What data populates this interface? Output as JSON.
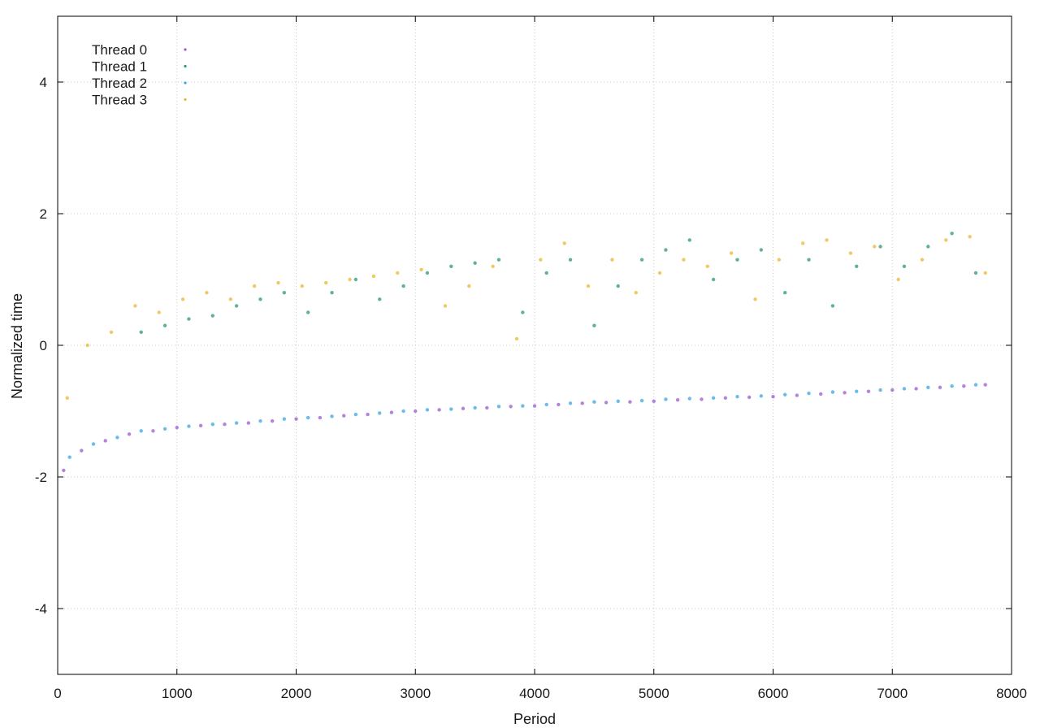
{
  "chart_data": {
    "type": "scatter",
    "title": "",
    "xlabel": "Period",
    "ylabel": "Normalized time",
    "xlim": [
      0,
      8000
    ],
    "ylim": [
      -5,
      5
    ],
    "x_ticks": [
      0,
      1000,
      2000,
      3000,
      4000,
      5000,
      6000,
      7000,
      8000
    ],
    "y_ticks": [
      -4,
      -2,
      0,
      2,
      4
    ],
    "x_tick_labels": [
      "0",
      "1000",
      "2000",
      "3000",
      "4000",
      "5000",
      "6000",
      "7000",
      "8000"
    ],
    "y_tick_labels": [
      "-4",
      "-2",
      "0",
      "2",
      "4"
    ],
    "grid": true,
    "legend_position": "top-left",
    "series": [
      {
        "name": "Thread 0",
        "color": "#9b59d0",
        "x": [
          50,
          200,
          400,
          600,
          800,
          1000,
          1200,
          1400,
          1600,
          1800,
          2000,
          2200,
          2400,
          2600,
          2800,
          3000,
          3200,
          3400,
          3600,
          3800,
          4000,
          4200,
          4400,
          4600,
          4800,
          5000,
          5200,
          5400,
          5600,
          5800,
          6000,
          6200,
          6400,
          6600,
          6800,
          7000,
          7200,
          7400,
          7600,
          7780
        ],
        "y": [
          -1.9,
          -1.6,
          -1.45,
          -1.35,
          -1.3,
          -1.25,
          -1.22,
          -1.2,
          -1.18,
          -1.15,
          -1.12,
          -1.1,
          -1.07,
          -1.05,
          -1.02,
          -1.0,
          -0.98,
          -0.96,
          -0.95,
          -0.93,
          -0.92,
          -0.9,
          -0.88,
          -0.87,
          -0.86,
          -0.85,
          -0.83,
          -0.82,
          -0.8,
          -0.79,
          -0.78,
          -0.76,
          -0.74,
          -0.72,
          -0.7,
          -0.68,
          -0.66,
          -0.64,
          -0.62,
          -0.6
        ]
      },
      {
        "name": "Thread 1",
        "color": "#2a9a6e",
        "x": [
          700,
          900,
          1100,
          1300,
          1500,
          1700,
          1900,
          2100,
          2300,
          2500,
          2700,
          2900,
          3100,
          3300,
          3500,
          3700,
          3900,
          4100,
          4300,
          4500,
          4700,
          4900,
          5100,
          5300,
          5500,
          5700,
          5900,
          6100,
          6300,
          6500,
          6700,
          6900,
          7100,
          7300,
          7500,
          7700
        ],
        "y": [
          0.2,
          0.3,
          0.4,
          0.45,
          0.6,
          0.7,
          0.8,
          0.5,
          0.8,
          1.0,
          0.7,
          0.9,
          1.1,
          1.2,
          1.25,
          1.3,
          0.5,
          1.1,
          1.3,
          0.3,
          0.9,
          1.3,
          1.45,
          1.6,
          1.0,
          1.3,
          1.45,
          0.8,
          1.3,
          0.6,
          1.2,
          1.5,
          1.2,
          1.5,
          1.7,
          1.1
        ]
      },
      {
        "name": "Thread 2",
        "color": "#3aa5e0",
        "x": [
          100,
          300,
          500,
          700,
          900,
          1100,
          1300,
          1500,
          1700,
          1900,
          2100,
          2300,
          2500,
          2700,
          2900,
          3100,
          3300,
          3500,
          3700,
          3900,
          4100,
          4300,
          4500,
          4700,
          4900,
          5100,
          5300,
          5500,
          5700,
          5900,
          6100,
          6300,
          6500,
          6700,
          6900,
          7100,
          7300,
          7500,
          7700
        ],
        "y": [
          -1.7,
          -1.5,
          -1.4,
          -1.3,
          -1.27,
          -1.23,
          -1.2,
          -1.18,
          -1.15,
          -1.12,
          -1.1,
          -1.08,
          -1.05,
          -1.03,
          -1.0,
          -0.98,
          -0.97,
          -0.95,
          -0.93,
          -0.92,
          -0.9,
          -0.88,
          -0.86,
          -0.85,
          -0.84,
          -0.82,
          -0.81,
          -0.8,
          -0.78,
          -0.77,
          -0.75,
          -0.73,
          -0.71,
          -0.7,
          -0.68,
          -0.66,
          -0.64,
          -0.62,
          -0.6
        ]
      },
      {
        "name": "Thread 3",
        "color": "#e8b830",
        "x": [
          80,
          250,
          450,
          650,
          850,
          1050,
          1250,
          1450,
          1650,
          1850,
          2050,
          2250,
          2450,
          2650,
          2850,
          3050,
          3250,
          3450,
          3650,
          3850,
          4050,
          4250,
          4450,
          4650,
          4850,
          5050,
          5250,
          5450,
          5650,
          5850,
          6050,
          6250,
          6450,
          6650,
          6850,
          7050,
          7250,
          7450,
          7650,
          7780
        ],
        "y": [
          -0.8,
          0.0,
          0.2,
          0.6,
          0.5,
          0.7,
          0.8,
          0.7,
          0.9,
          0.95,
          0.9,
          0.95,
          1.0,
          1.05,
          1.1,
          1.15,
          0.6,
          0.9,
          1.2,
          0.1,
          1.3,
          1.55,
          0.9,
          1.3,
          0.8,
          1.1,
          1.3,
          1.2,
          1.4,
          0.7,
          1.3,
          1.55,
          1.6,
          1.4,
          1.5,
          1.0,
          1.3,
          1.6,
          1.65,
          1.1
        ]
      }
    ]
  }
}
